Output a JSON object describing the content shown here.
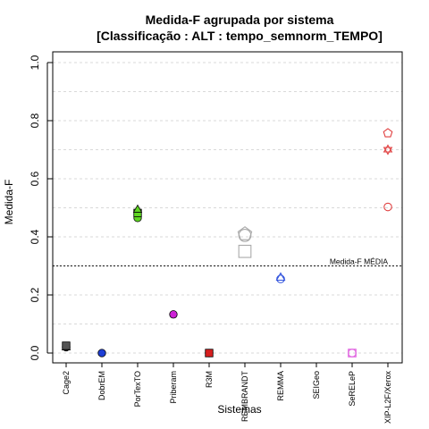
{
  "chart_data": {
    "type": "scatter",
    "title": "Medida-F agrupada por sistema",
    "subtitle": "[Classificação : ALT : tempo_semnorm_TEMPO]",
    "xlabel": "Sistemas",
    "ylabel": "Medida-F",
    "ylim": [
      0,
      1
    ],
    "yticks": [
      "0.0",
      "0.2",
      "0.4",
      "0.6",
      "0.8",
      "1.0"
    ],
    "grid": true,
    "categories": [
      "Cage2",
      "DobrEM",
      "PorTexTO",
      "Priberam",
      "R3M",
      "REMBRANDT",
      "REMMA",
      "SEIGeo",
      "SeRELeP",
      "XIP-L2F/Xerox"
    ],
    "reference_line": {
      "label": "Medida-F MÉDIA",
      "value": 0.3
    },
    "points": [
      {
        "category": "Cage2",
        "y": 0.02,
        "shape": "circle",
        "color": "#555555",
        "filled": true
      },
      {
        "category": "Cage2",
        "y": 0.02,
        "shape": "triangle",
        "color": "#555555",
        "filled": true
      },
      {
        "category": "Cage2",
        "y": 0.025,
        "shape": "square",
        "color": "#555555",
        "filled": true
      },
      {
        "category": "DobrEM",
        "y": 0.0,
        "shape": "circle",
        "color": "#1f3fd6",
        "filled": true
      },
      {
        "category": "PorTexTO",
        "y": 0.465,
        "shape": "circle",
        "color": "#5fd622",
        "filled": true
      },
      {
        "category": "PorTexTO",
        "y": 0.482,
        "shape": "square",
        "color": "#5fd622",
        "filled": true
      },
      {
        "category": "PorTexTO",
        "y": 0.494,
        "shape": "triangle",
        "color": "#5fd622",
        "filled": true
      },
      {
        "category": "Priberam",
        "y": 0.133,
        "shape": "circle",
        "color": "#cc22d6",
        "filled": true
      },
      {
        "category": "R3M",
        "y": 0.0,
        "shape": "circle",
        "color": "#d61f1f",
        "filled": true
      },
      {
        "category": "R3M",
        "y": 0.0,
        "shape": "square",
        "color": "#d61f1f",
        "filled": true
      },
      {
        "category": "REMBRANDT",
        "y": 0.35,
        "shape": "square",
        "color": "#aaaaaa",
        "filled": false
      },
      {
        "category": "REMBRANDT",
        "y": 0.405,
        "shape": "circle",
        "color": "#aaaaaa",
        "filled": false
      },
      {
        "category": "REMBRANDT",
        "y": 0.41,
        "shape": "pentagon",
        "color": "#aaaaaa",
        "filled": false
      },
      {
        "category": "REMMA",
        "y": 0.255,
        "shape": "circle",
        "color": "#3355dd",
        "filled": false
      },
      {
        "category": "REMMA",
        "y": 0.26,
        "shape": "triangle",
        "color": "#3355dd",
        "filled": false
      },
      {
        "category": "SeRELeP",
        "y": 0.0,
        "shape": "circle",
        "color": "#e060e0",
        "filled": false
      },
      {
        "category": "SeRELeP",
        "y": 0.0,
        "shape": "square",
        "color": "#e060e0",
        "filled": false
      },
      {
        "category": "XIP-L2F/Xerox",
        "y": 0.503,
        "shape": "circle",
        "color": "#e04040",
        "filled": false
      },
      {
        "category": "XIP-L2F/Xerox",
        "y": 0.7,
        "shape": "star",
        "color": "#e04040",
        "filled": false
      },
      {
        "category": "XIP-L2F/Xerox",
        "y": 0.757,
        "shape": "pentagon",
        "color": "#e04040",
        "filled": false
      }
    ]
  }
}
